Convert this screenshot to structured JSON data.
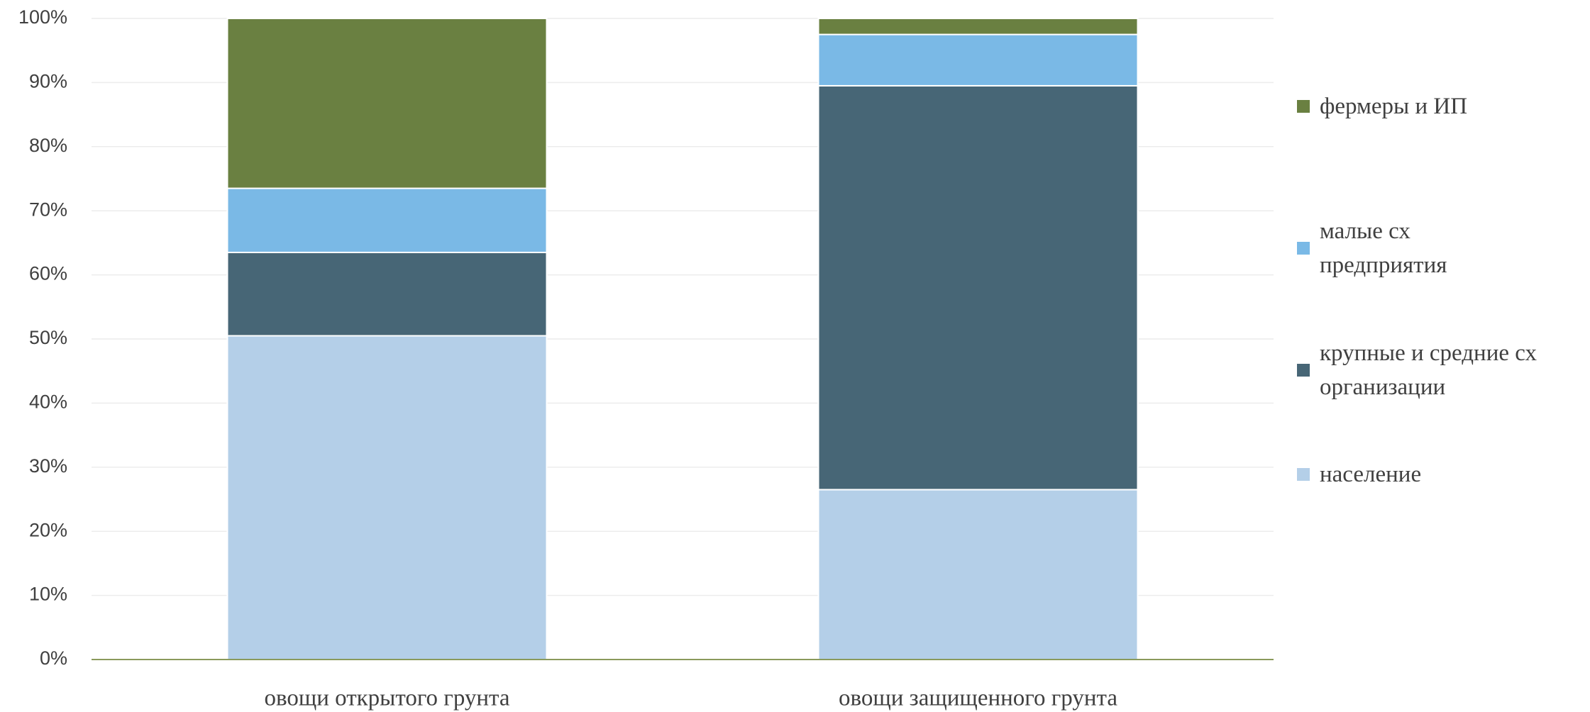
{
  "chart_data": {
    "type": "stacked_bar",
    "categories": [
      "овощи открытого грунта",
      "овощи защищенного грунта"
    ],
    "series": [
      {
        "name": "население",
        "color": "#b4cfe8",
        "values": [
          50.5,
          26.5
        ]
      },
      {
        "name": "крупные и средние сх организации",
        "color": "#476676",
        "values": [
          13,
          63
        ]
      },
      {
        "name": "малые сх предприятия",
        "color": "#7ab9e6",
        "values": [
          10,
          8
        ]
      },
      {
        "name": "фермеры и ИП",
        "color": "#6a8041",
        "values": [
          26.5,
          2.5
        ]
      }
    ],
    "ylim": [
      0,
      100
    ],
    "yticks": [
      {
        "value": 0,
        "label": "0%"
      },
      {
        "value": 10,
        "label": "10%"
      },
      {
        "value": 20,
        "label": "20%"
      },
      {
        "value": 30,
        "label": "30%"
      },
      {
        "value": 40,
        "label": "40%"
      },
      {
        "value": 50,
        "label": "50%"
      },
      {
        "value": 60,
        "label": "60%"
      },
      {
        "value": 70,
        "label": "70%"
      },
      {
        "value": 80,
        "label": "80%"
      },
      {
        "value": 90,
        "label": "90%"
      },
      {
        "value": 100,
        "label": "100%"
      }
    ],
    "grid": true,
    "legend": "right"
  }
}
